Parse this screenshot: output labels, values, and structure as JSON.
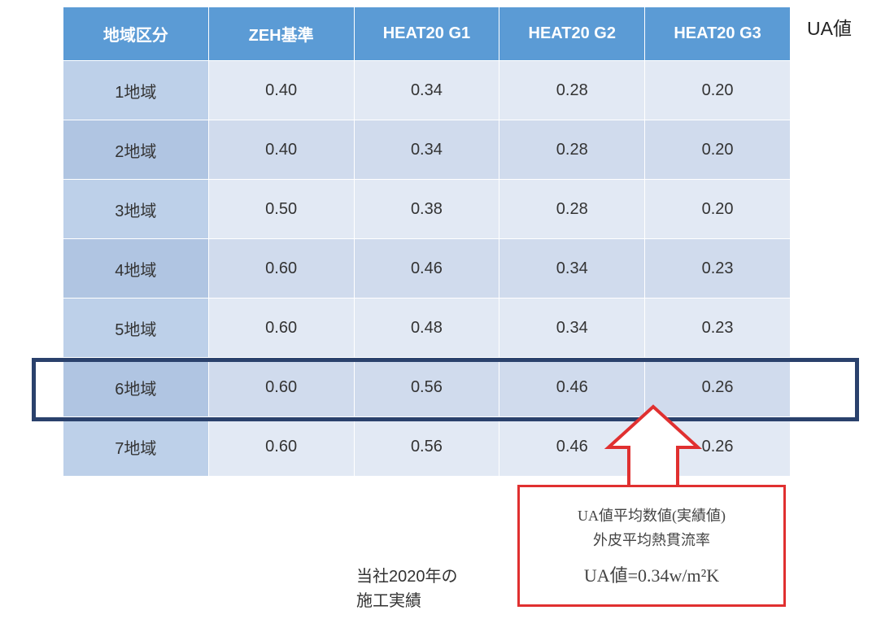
{
  "table": {
    "columns": [
      "地域区分",
      "ZEH基準",
      "HEAT20 G1",
      "HEAT20 G2",
      "HEAT20 G3"
    ],
    "rows": [
      {
        "region": "1地域",
        "values": [
          "0.40",
          "0.34",
          "0.28",
          "0.20"
        ]
      },
      {
        "region": "2地域",
        "values": [
          "0.40",
          "0.34",
          "0.28",
          "0.20"
        ]
      },
      {
        "region": "3地域",
        "values": [
          "0.50",
          "0.38",
          "0.28",
          "0.20"
        ]
      },
      {
        "region": "4地域",
        "values": [
          "0.60",
          "0.46",
          "0.34",
          "0.23"
        ]
      },
      {
        "region": "5地域",
        "values": [
          "0.60",
          "0.48",
          "0.34",
          "0.23"
        ]
      },
      {
        "region": "6地域",
        "values": [
          "0.60",
          "0.56",
          "0.46",
          "0.26"
        ]
      },
      {
        "region": "7地域",
        "values": [
          "0.60",
          "0.56",
          "0.46",
          "0.26"
        ]
      }
    ],
    "header_bg_color": "#5b9bd5",
    "header_text_color": "#ffffff",
    "region_cell_bg_odd": "#bdd0e9",
    "region_cell_bg_even": "#b0c5e2",
    "data_cell_bg_odd": "#e2e9f4",
    "data_cell_bg_even": "#d0dbed",
    "border_color": "#ffffff",
    "font_size": 20,
    "highlighted_row_index": 5,
    "highlight_border_color": "#2a416c",
    "highlight_border_width": 5
  },
  "ua_label": "UA値",
  "callout": {
    "line1": "UA値平均数値(実績値)",
    "line2": "外皮平均熱貫流率",
    "line3": "UA値=0.34w/m²K",
    "border_color": "#e03030",
    "arrow_color": "#e03030",
    "text_color": "#444444"
  },
  "company_note": {
    "line1": "当社2020年の",
    "line2": "施工実績"
  }
}
